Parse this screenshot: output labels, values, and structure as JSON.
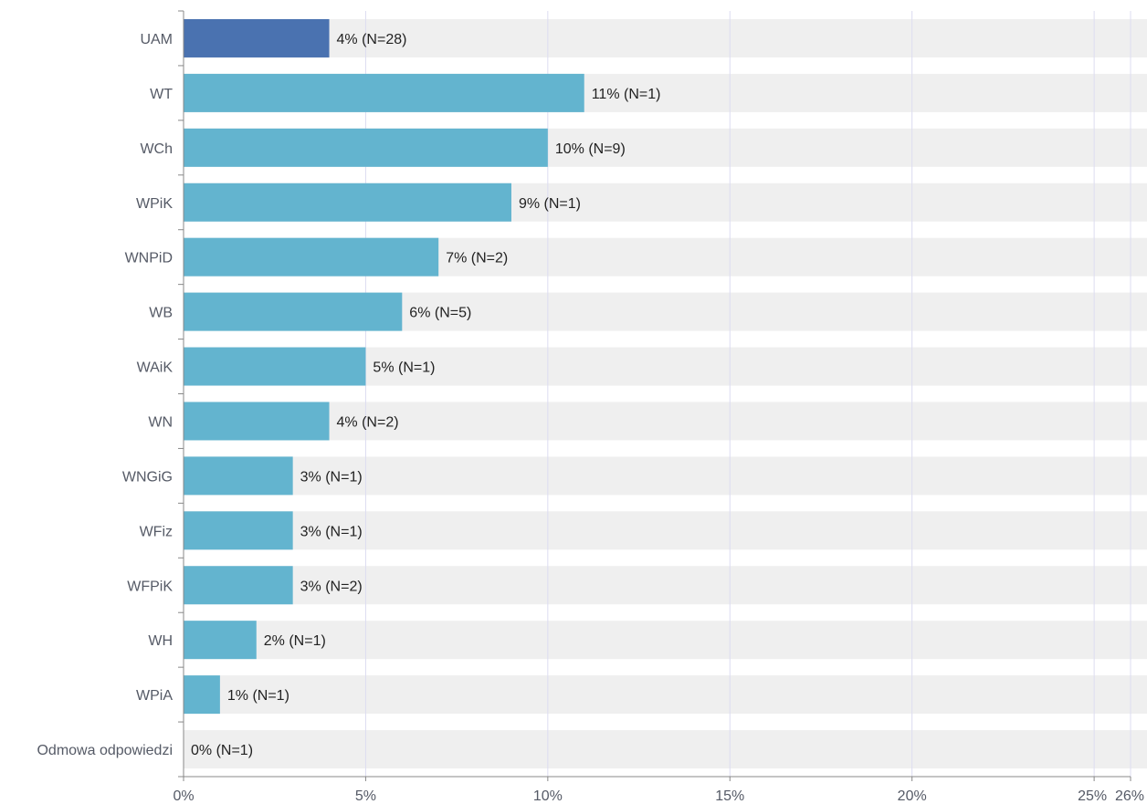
{
  "chart_data": {
    "type": "bar",
    "orientation": "horizontal",
    "categories": [
      "UAM",
      "WT",
      "WCh",
      "WPiK",
      "WNPiD",
      "WB",
      "WAiK",
      "WN",
      "WNGiG",
      "WFiz",
      "WFPiK",
      "WH",
      "WPiA",
      "Odmowa odpowiedzi"
    ],
    "values": [
      4,
      11,
      10,
      9,
      7,
      6,
      5,
      4,
      3,
      3,
      3,
      2,
      1,
      0
    ],
    "value_labels": [
      "4% (N=28)",
      "11% (N=1)",
      "10% (N=9)",
      "9% (N=1)",
      "7% (N=2)",
      "6% (N=5)",
      "5% (N=1)",
      "4% (N=2)",
      "3% (N=1)",
      "3% (N=1)",
      "3% (N=2)",
      "2% (N=1)",
      "1% (N=1)",
      "0% (N=1)"
    ],
    "highlight_index": 0,
    "xlim": [
      0,
      26
    ],
    "xticks": [
      0,
      5,
      10,
      15,
      20,
      25,
      26
    ],
    "xtick_labels": [
      "0%",
      "5%",
      "10%",
      "15%",
      "20%",
      "25%",
      "26%"
    ],
    "grid": true,
    "title": "",
    "xlabel": "",
    "ylabel": ""
  },
  "colors": {
    "highlight_bar": "#4a72b0",
    "bar": "#63b4cf",
    "row_background": "#efefef",
    "gridline": "#dcdcf0",
    "axis": "#888888"
  }
}
